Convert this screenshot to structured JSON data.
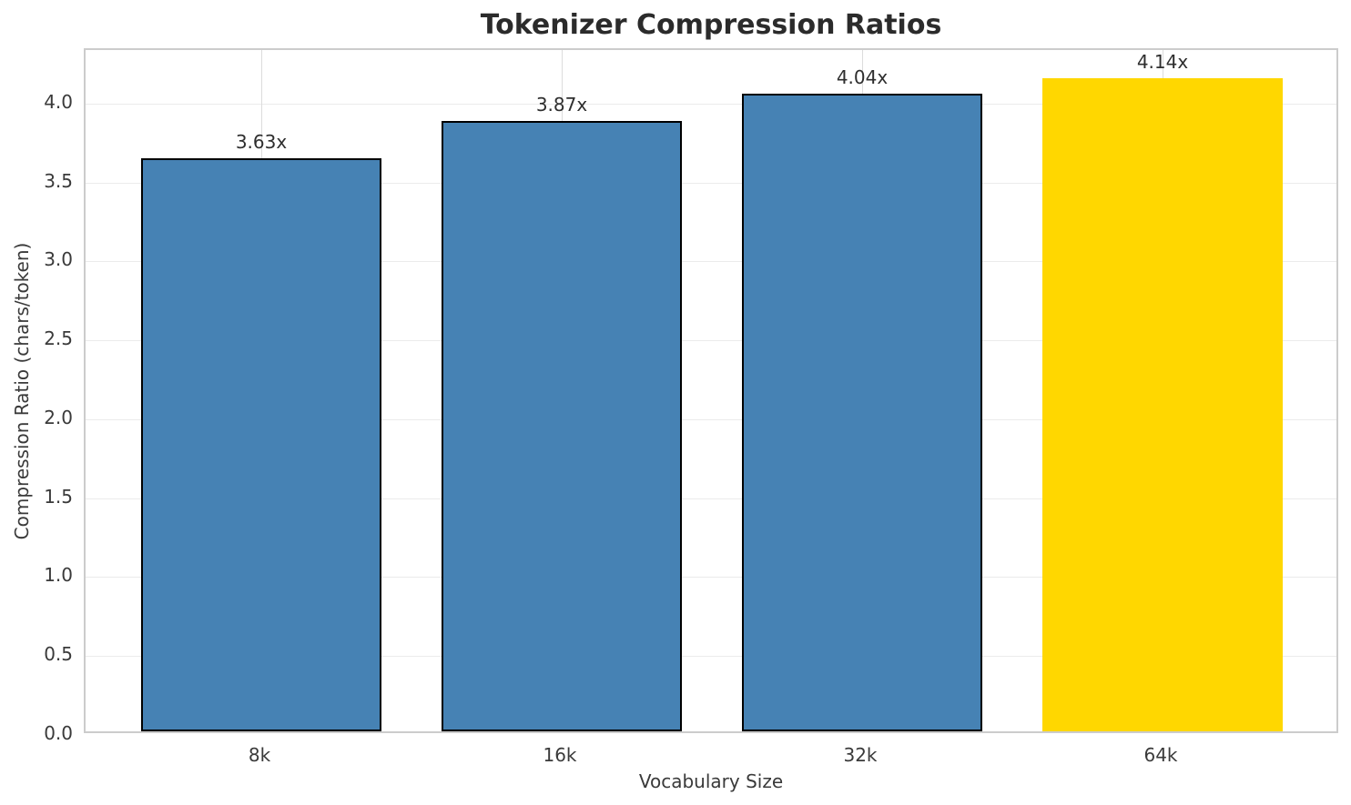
{
  "chart_data": {
    "type": "bar",
    "title": "Tokenizer Compression Ratios",
    "xlabel": "Vocabulary Size",
    "ylabel": "Compression Ratio (chars/token)",
    "categories": [
      "8k",
      "16k",
      "32k",
      "64k"
    ],
    "values": [
      3.63,
      3.87,
      4.04,
      4.14
    ],
    "bar_value_labels": [
      "3.63x",
      "3.87x",
      "4.04x",
      "4.14x"
    ],
    "ylim": [
      0,
      4.34
    ],
    "ytick_values": [
      0,
      0.5,
      1.0,
      1.5,
      2.0,
      2.5,
      3.0,
      3.5,
      4.0
    ],
    "ytick_labels": [
      "0.0",
      "0.5",
      "1.0",
      "1.5",
      "2.0",
      "2.5",
      "3.0",
      "3.5",
      "4.0"
    ],
    "grid": true,
    "legend": false,
    "colors": {
      "bar_fills": [
        "#4682B4",
        "#4682B4",
        "#4682B4",
        "#FFD700"
      ],
      "bar_edges": [
        "#000000",
        "#000000",
        "#000000",
        "none"
      ],
      "highlight": "#FFD700",
      "default_bar": "#4682B4",
      "gridline_h": "#ebebeb",
      "gridline_v": "#dcdcdc",
      "spine": "#cccccc",
      "text": "#3a3a3a",
      "title_text": "#2b2b2b"
    }
  }
}
